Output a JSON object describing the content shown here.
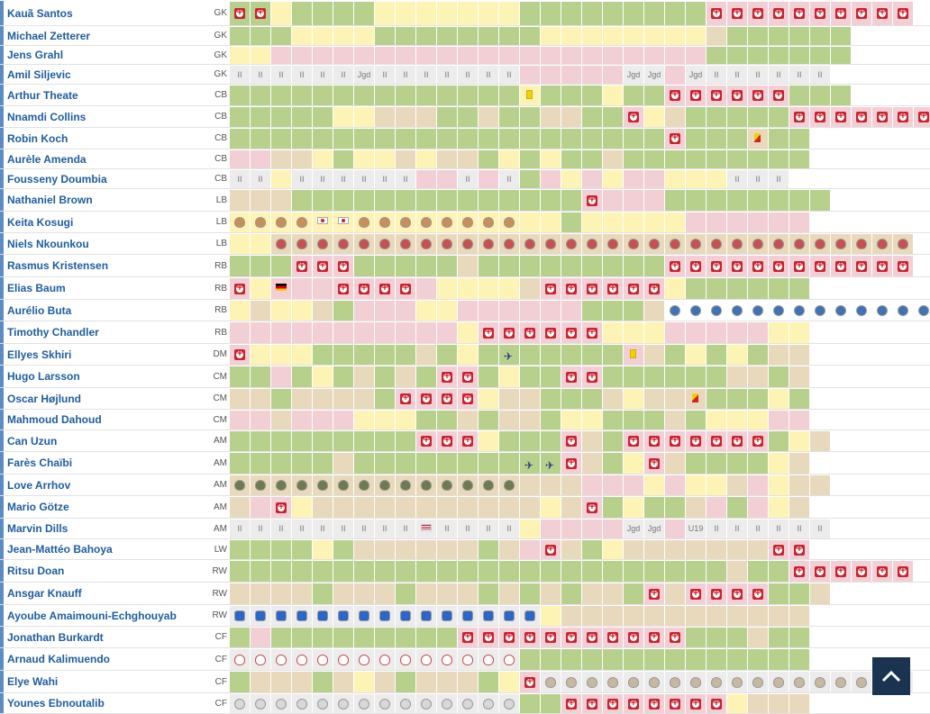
{
  "legend_colors": {
    "g": "#b7d08c",
    "y": "#fdf3b5",
    "p": "#f2cfd5",
    "t": "#e8d9bc",
    "x": "#ececec",
    "w": "#ffffff"
  },
  "cell_text": {
    "h": "II",
    "j": "Jgd",
    "u": "U19"
  },
  "icon_names": {
    "inj": "injury-icon",
    "cr-k": "club-crest-icon",
    "cr-n": "club-crest-icon",
    "cr-b": "club-crest-icon",
    "cr-h": "club-crest-icon",
    "cr-a": "club-crest-icon",
    "cr-f": "club-crest-icon",
    "cr-ni": "club-crest-icon",
    "cr-s": "club-crest-icon",
    "flag-de": "germany-flag-icon",
    "flag-jp": "japan-flag-icon",
    "flag-us": "usa-flag-icon",
    "ycard": "yellow-card-icon",
    "yrcard": "yellow-red-card-icon",
    "plane": "airplane-icon"
  },
  "players": [
    {
      "name": "Kauã Santos",
      "pos": "GK",
      "cells": "g:inj g:inj y g g g g y y y y y y y g g g g g g g g g p:inj p:inj p:inj p:inj p:inj p:inj p:inj p:inj p:inj p:inj"
    },
    {
      "name": "Michael Zetterer",
      "pos": "GK",
      "cells": "g g g y y y y g g g g g g g g y y y y y y y y t g g g g g g w w w w w"
    },
    {
      "name": "Jens Grahl",
      "pos": "GK",
      "cells": "y y p p p p p p p p p p p p p p p p p p p p p g g g g g g g w w w w w"
    },
    {
      "name": "Amil Siljevic",
      "pos": "GK",
      "cells": "x:h x:h x:h x:h x:h x:h x:j x:h x:h x:h x:h x:h x:h x:h p p p p p x:j x:j p x:j x:h x:h x:h x:h x:h x:h w w w w w"
    },
    {
      "name": "Arthur Theate",
      "pos": "CB",
      "cells": "g g g g g g g g g g g g g g y:ycard g g g y g g p:inj p:inj p:inj p:inj p:inj p:inj g g g w w w w w"
    },
    {
      "name": "Nnamdi Collins",
      "pos": "CB",
      "cells": "g g g g g y y t t t g g t g g t t g g p:inj y t g g g g g p:inj p:inj p:inj p:inj p:inj p:inj p:inj"
    },
    {
      "name": "Robin Koch",
      "pos": "CB",
      "cells": "g g g g g g g g g g g g g g g g g g g g g p:inj g g g t:yrcard g g w w w w w"
    },
    {
      "name": "Aurèle Amenda",
      "pos": "CB",
      "cells": "p p t t y g y y t y t t g y g y g g t g g g g g g g g g w w w w w"
    },
    {
      "name": "Fousseny Doumbia",
      "pos": "CB",
      "cells": "x:h x:h y x:h x:h x:h x:h x:h x:h p p x:h p x:h g p y p y p p y y y x:h x:h x:h w w w w w"
    },
    {
      "name": "Nathaniel Brown",
      "pos": "LB",
      "cells": "t t t g g g g g g g g g g g g g g p:inj p p p g g g g g g g g w w w w w"
    },
    {
      "name": "Keita Kosugi",
      "pos": "LB",
      "cells": "y:cr-k y:cr-k y:cr-k y:cr-k y:flag-jp y:flag-jp y:cr-k y:cr-k y:cr-k y:cr-k y:cr-k y:cr-k y:cr-k y:cr-k y y g y y y y y p p p p p p w w w w w"
    },
    {
      "name": "Niels Nkounkou",
      "pos": "LB",
      "cells": "y y t:cr-n t:cr-n t:cr-n t:cr-n t:cr-n t:cr-n t:cr-n t:cr-n t:cr-n t:cr-n t:cr-n t:cr-n t:cr-n t:cr-n t:cr-n t:cr-n t:cr-n t:cr-n t:cr-n t:cr-n t:cr-n t:cr-n t:cr-n t:cr-n t:cr-n t:cr-n t:cr-n t:cr-n t:cr-n t:cr-n t:cr-n"
    },
    {
      "name": "Rasmus Kristensen",
      "pos": "RB",
      "cells": "g g g p:inj p:inj p:inj g g g g g t g g g g g g g g g p:inj p:inj p:inj p:inj p:inj p:inj p:inj p:inj p:inj p:inj p:inj p:inj"
    },
    {
      "name": "Elias Baum",
      "pos": "RB",
      "cells": "p:inj y p:flag-de p p p:inj p:inj p:inj p:inj p y y y y t p:inj p:inj p:inj p:inj p:inj p:inj y g g g g g g w w w w w"
    },
    {
      "name": "Aurélio Buta",
      "pos": "RB",
      "cells": "y t y y t g p p p y y p p p p p p g g g t w:cr-b w:cr-b w:cr-b w:cr-b w:cr-b w:cr-b w:cr-b w:cr-b w:cr-b w:cr-b w:cr-b w:cr-b w:cr-b w:cr-b w:cr-b"
    },
    {
      "name": "Timothy Chandler",
      "pos": "RB",
      "cells": "p p p p p p p p p p p y p:inj p:inj p:inj p:inj p:inj p:inj y y y p p p p p y y w w w w w"
    },
    {
      "name": "Ellyes Skhiri",
      "pos": "DM",
      "cells": "p:inj y y y g g g g g t g y g g:plane g g g g g p:ycard t g y g y g t t w w w w w"
    },
    {
      "name": "Hugo Larsson",
      "pos": "CM",
      "cells": "g g p g y g t g t g p:inj p:inj g y g g p:inj p:inj g g g g g g t t g t w w w w w"
    },
    {
      "name": "Oscar Højlund",
      "pos": "CM",
      "cells": "t t g t t t t g p:inj p:inj p:inj p:inj y t t g g g t y t t t:yrcard g g g y g w w w w w"
    },
    {
      "name": "Mahmoud Dahoud",
      "pos": "CM",
      "cells": "p p t p p p y y y g g t g t t g y y g g g t g y y y p p w w w w w"
    },
    {
      "name": "Can Uzun",
      "pos": "AM",
      "cells": "g g g g g g g g g p:inj p:inj p:inj y g g g p:inj t g p:inj p:inj p:inj p:inj p:inj p:inj p:inj g y t w w w w w"
    },
    {
      "name": "Farès Chaïbi",
      "pos": "AM",
      "cells": "g g g g g t g g g g g g g g g:plane g:plane p:inj t g y p:inj t g g g g y t w w w w w"
    },
    {
      "name": "Love Arrhov",
      "pos": "AM",
      "cells": "t:cr-a t:cr-a t:cr-a t:cr-a t:cr-a t:cr-a t:cr-a t:cr-a t:cr-a t:cr-a t:cr-a t:cr-a t:cr-a t:cr-a t t t p p p y p y y t p y t t w w w w w"
    },
    {
      "name": "Mario Götze",
      "pos": "AM",
      "cells": "t p p:inj y t t t t t t t t t t t y t p:inj g y g g t p g p y t w w w w w"
    },
    {
      "name": "Marvin Dills",
      "pos": "AM",
      "cells": "x:h x:h x:h x:h x:h x:h x:h x:h x:h x:flag-us x:h x:h x:h x:h y p p p p x:j x:j p x:u x:h x:h x:h x:h x:h x:h w w w w w"
    },
    {
      "name": "Jean-Mattéo Bahoya",
      "pos": "LW",
      "cells": "g g g g y g t t t t t t g t p p:inj t g y t t t t t t t p:inj p:inj w w w w w"
    },
    {
      "name": "Ritsu Doan",
      "pos": "RW",
      "cells": "g g g g g g g g g g g g g g g g g g g g g g g g t g g p:inj p:inj p:inj p:inj p:inj p:inj"
    },
    {
      "name": "Ansgar Knauff",
      "pos": "RW",
      "cells": "t t t t g t t t g t t t g t g t g t t g p:inj t p:inj p:inj p:inj p:inj g g t w w w w w"
    },
    {
      "name": "Ayoube Amaimouni-Echghouyab",
      "pos": "RW",
      "cells": "x:cr-h x:cr-h x:cr-h x:cr-h x:cr-h x:cr-h x:cr-h x:cr-h x:cr-h x:cr-h x:cr-h x:cr-h x:cr-h x:cr-h x:cr-h y t t t t t t t t t t t t w w w w w"
    },
    {
      "name": "Jonathan Burkardt",
      "pos": "CF",
      "cells": "g p g g g g g g g g g p:inj p:inj p:inj p:inj p:inj p:inj p:inj p:inj p:inj p:inj p:inj g g g t g g w w w w w"
    },
    {
      "name": "Arnaud Kalimuendo",
      "pos": "CF",
      "cells": "x:cr-f x:cr-f x:cr-f x:cr-f x:cr-f x:cr-f x:cr-f x:cr-f x:cr-f x:cr-f x:cr-f x:cr-f x:cr-f x:cr-f g g g g g g g g g g g g g g w w w w w"
    },
    {
      "name": "Elye Wahi",
      "pos": "CF",
      "cells": "g t t t g t y t g t t t g y p:inj x:cr-ni x:cr-ni x:cr-ni x:cr-ni x:cr-ni x:cr-ni x:cr-ni x:cr-ni x:cr-ni x:cr-ni x:cr-ni x:cr-ni x:cr-ni x:cr-ni x:cr-ni x:cr-ni x:cr-ni x:cr-ni"
    },
    {
      "name": "Younes Ebnoutalib",
      "pos": "CF",
      "cells": "x:cr-s x:cr-s x:cr-s x:cr-s x:cr-s x:cr-s x:cr-s x:cr-s x:cr-s x:cr-s x:cr-s x:cr-s x:cr-s x:cr-s g g p:inj p:inj p:inj p:inj p:inj p:inj p:inj p:inj y t t t w w w w w"
    }
  ]
}
